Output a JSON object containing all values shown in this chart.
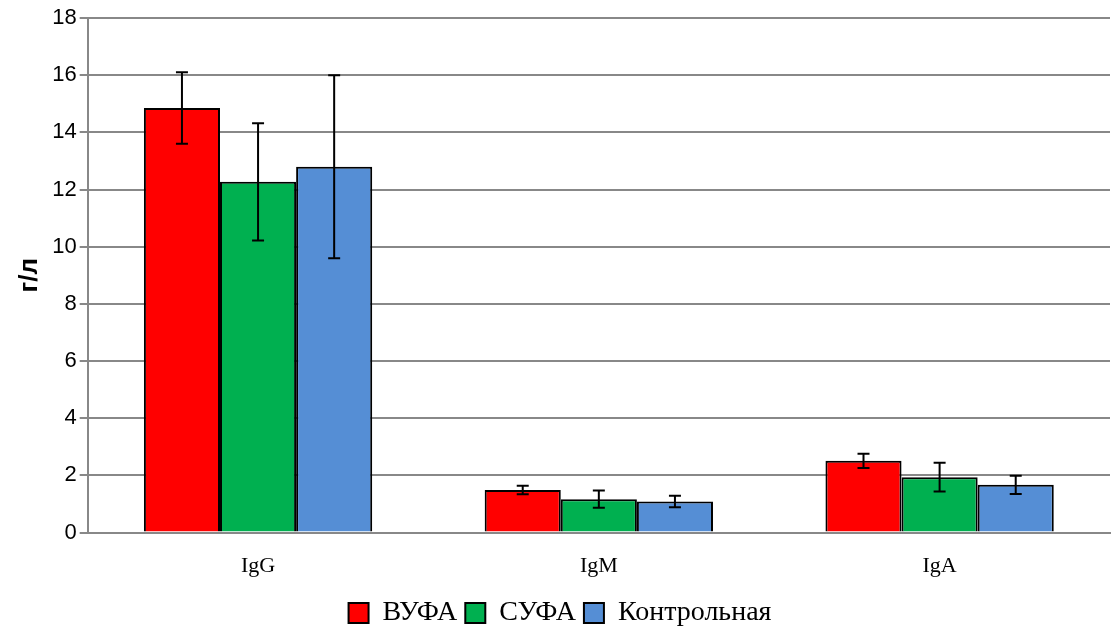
{
  "chart_data": {
    "type": "bar",
    "ylabel": "г/л",
    "categories": [
      "IgG",
      "IgM",
      "IgA"
    ],
    "series": [
      {
        "name": "ВУФА",
        "color": "#ff0000",
        "values": [
          14.85,
          1.49,
          2.51
        ],
        "errors": [
          1.25,
          0.15,
          0.25
        ]
      },
      {
        "name": "СУФА",
        "color": "#00b050",
        "values": [
          12.27,
          1.17,
          1.94
        ],
        "errors": [
          2.05,
          0.3,
          0.5
        ]
      },
      {
        "name": "Контрольная",
        "color": "#558ed5",
        "values": [
          12.8,
          1.09,
          1.67
        ],
        "errors": [
          3.2,
          0.2,
          0.32
        ]
      }
    ],
    "ylim": [
      0,
      18
    ],
    "yticks": [
      0,
      2,
      4,
      6,
      8,
      10,
      12,
      14,
      16,
      18
    ],
    "grid": "y",
    "legend": "bottom"
  }
}
